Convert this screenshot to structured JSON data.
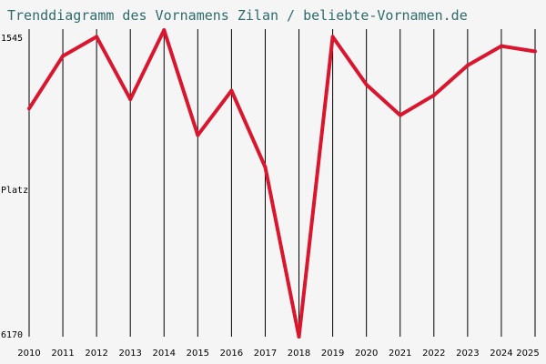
{
  "chart_data": {
    "type": "line",
    "title": "Trenddiagramm des Vornamens Zilan / beliebte-Vornamen.de",
    "ylabel": "Platz",
    "y_top_label": "1545",
    "y_bottom_label": "6170",
    "ylim": [
      1545,
      6170
    ],
    "y_inverted": true,
    "grid_vertical": true,
    "x": [
      "2010",
      "2011",
      "2012",
      "2013",
      "2014",
      "2015",
      "2016",
      "2017",
      "2018",
      "2019",
      "2020",
      "2021",
      "2022",
      "2023",
      "2024",
      "2025"
    ],
    "series": [
      {
        "values": [
          2740,
          1950,
          1660,
          2600,
          1560,
          3140,
          2470,
          3620,
          6170,
          1660,
          2380,
          2840,
          2540,
          2090,
          1800,
          1880
        ]
      }
    ],
    "colors": {
      "line": "#d9162e",
      "grid": "#000000",
      "title": "#2f6b6b",
      "background": "#f5f5f5"
    }
  }
}
